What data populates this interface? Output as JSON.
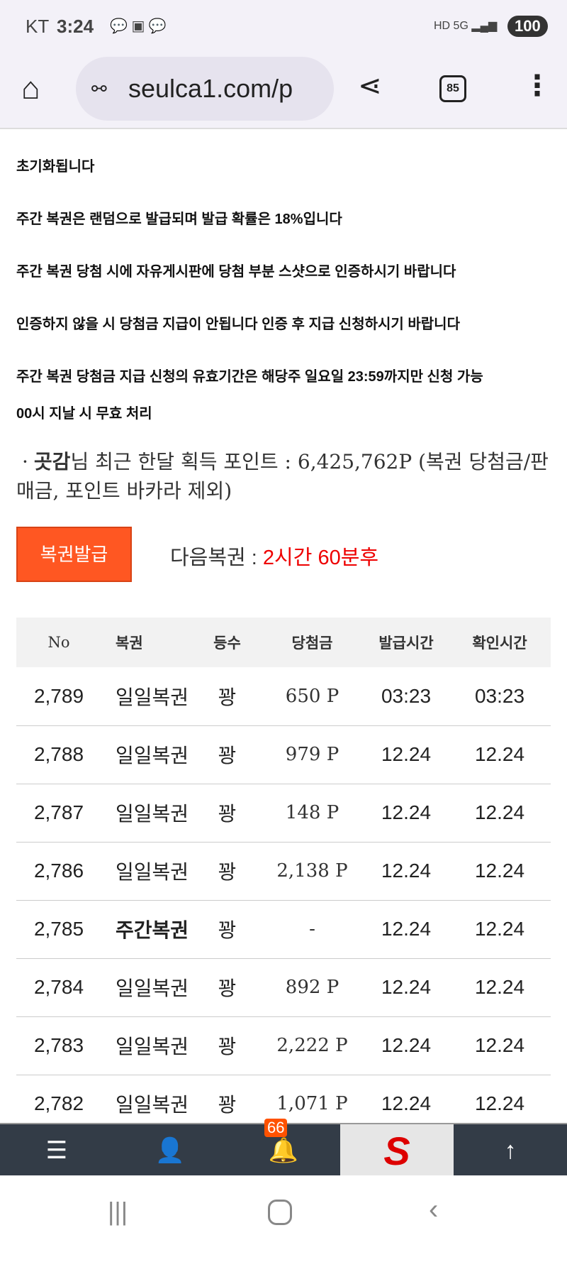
{
  "status_bar": {
    "carrier": "KT",
    "time": "3:24",
    "battery": "100"
  },
  "browser": {
    "url": "seulca1.com/p",
    "tab_count": "85"
  },
  "notes": [
    "초기화됩니다",
    "주간 복권은 랜덤으로 발급되며 발급 확률은 18%입니다",
    "주간 복권 당첨 시에 자유게시판에 당첨 부분 스샷으로 인증하시기 바랍니다",
    "인증하지 않을 시 당첨금 지급이 안됩니다 인증 후 지급 신청하시기 바랍니다",
    "주간 복권 당첨금 지급 신청의 유효기간은 해당주 일요일 23:59까지만 신청 가능",
    "00시 지날 시 무효 처리"
  ],
  "points": {
    "bullet": "·",
    "user": "곳감",
    "text": "님 최근 한달 획득 포인트 : 6,425,762P (복권 당첨금/판매금, 포인트 바카라 제외)"
  },
  "issue_button": "복권발급",
  "next": {
    "label": "다음복권 : ",
    "value": "2시간 60분후"
  },
  "table": {
    "headers": [
      "No",
      "복권",
      "등수",
      "당첨금",
      "발급시간",
      "확인시간"
    ],
    "rows": [
      [
        "2,789",
        "일일복권",
        "꽝",
        "650 P",
        "03:23",
        "03:23"
      ],
      [
        "2,788",
        "일일복권",
        "꽝",
        "979 P",
        "12.24",
        "12.24"
      ],
      [
        "2,787",
        "일일복권",
        "꽝",
        "148 P",
        "12.24",
        "12.24"
      ],
      [
        "2,786",
        "일일복권",
        "꽝",
        "2,138 P",
        "12.24",
        "12.24"
      ],
      [
        "2,785",
        "주간복권",
        "꽝",
        "-",
        "12.24",
        "12.24"
      ],
      [
        "2,784",
        "일일복권",
        "꽝",
        "892 P",
        "12.24",
        "12.24"
      ],
      [
        "2,783",
        "일일복권",
        "꽝",
        "2,222 P",
        "12.24",
        "12.24"
      ],
      [
        "2,782",
        "일일복권",
        "꽝",
        "1,071 P",
        "12.24",
        "12.24"
      ]
    ]
  },
  "bottom_nav": {
    "notification_count": "66",
    "logo_letter": "S"
  },
  "colors": {
    "accent": "#ff5722",
    "nav_bg": "#333c47",
    "next_time": "#e00000"
  }
}
